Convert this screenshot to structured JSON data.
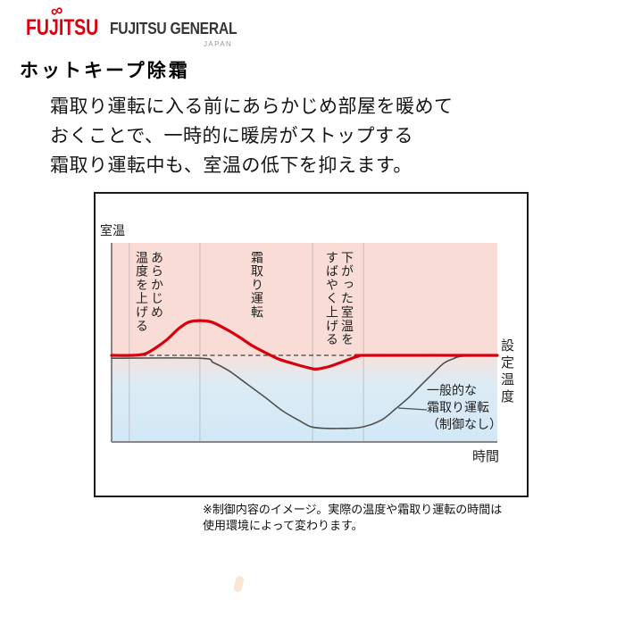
{
  "logo": {
    "fujitsu": "FUJITSU",
    "infinity": "∞",
    "general": "FUJITSU GENERAL",
    "japan": "JAPAN",
    "brand_red": "#dc000f",
    "brand_dark": "#35353a"
  },
  "heading": {
    "text": "ホットキープ除霜"
  },
  "intro": {
    "text": "霜取り運転に入る前にあらかじめ部屋を暖めて\nおくことで、一時的に暖房がストップする\n霜取り運転中も、室温の低下を抑えます。"
  },
  "diagram": {
    "y_axis_label": "室温",
    "x_axis_label": "時間",
    "set_temp_label": "設定\n温度",
    "phase1": "あらかじめ\n温度を上げる",
    "phase2": "霜取り運転",
    "phase3": "下がった室温を\nすばやく上げる",
    "legend_normal": "一般的な\n霜取り運転\n（制御なし）",
    "colors": {
      "above_set_fill": "#f9dcd6",
      "below_set_fill": "#d2e8f6",
      "hotkeep_line": "#d7000f",
      "normal_line": "#4f4f4f",
      "set_temp_dash": "#3f3f3f",
      "axis": "#85858a"
    }
  },
  "footnote": {
    "text": "※制御内容のイメージ。実際の温度や霜取り運転の時間は\n使用環境によって変わります。"
  },
  "chart_data": {
    "type": "line",
    "title": "ホットキープ除霜",
    "xlabel": "時間",
    "ylabel": "室温",
    "axis_note": "目盛りなしの概念図。x=0〜100の相対時間、y=設定温度を0とした相対室温",
    "xlim": [
      0,
      100
    ],
    "ylim": [
      -1.3,
      0.9
    ],
    "grid": "phase boundaries only (vertical lines)",
    "legend_position": "inside lower right (gray series only, with pointer line)",
    "reference_line": {
      "label": "設定温度",
      "y": 0,
      "style": "dashed"
    },
    "phases": [
      {
        "label": "あらかじめ温度を上げる",
        "x_start": 4.6,
        "x_end": 22.9
      },
      {
        "label": "霜取り運転",
        "x_start": 22.9,
        "x_end": 52.1
      },
      {
        "label": "下がった室温をすばやく上げる",
        "x_start": 52.1,
        "x_end": 65.3
      }
    ],
    "series": [
      {
        "name": "一般的な霜取り運転（制御なし）",
        "color": "#4f4f4f",
        "width": 1.6,
        "x": [
          0,
          22.9,
          26.4,
          30.6,
          35.2,
          39.8,
          44.4,
          48.6,
          51.9,
          56.0,
          60.6,
          64.1,
          67.1,
          70.4,
          73.6,
          76.9,
          80.1,
          83.3,
          86.1,
          88.4,
          91.2,
          100
        ],
        "y": [
          -0.04,
          -0.04,
          -0.1,
          -0.22,
          -0.4,
          -0.58,
          -0.77,
          -0.9,
          -0.99,
          -1.01,
          -1.01,
          -1.0,
          -0.96,
          -0.88,
          -0.74,
          -0.59,
          -0.42,
          -0.25,
          -0.11,
          -0.05,
          -0.01,
          -0.01
        ]
      },
      {
        "name": "ホットキープ除霜",
        "color": "#d7000f",
        "width": 3.2,
        "x": [
          0,
          5.0,
          8.6,
          11.6,
          14.4,
          17.4,
          20.0,
          22.9,
          25.9,
          29.4,
          32.9,
          36.3,
          39.8,
          43.3,
          46.8,
          50.2,
          53.0,
          56.0,
          58.8,
          61.8,
          64.1,
          66.4,
          100
        ],
        "y": [
          0,
          0,
          0.02,
          0.11,
          0.22,
          0.37,
          0.46,
          0.48,
          0.46,
          0.37,
          0.26,
          0.14,
          0.04,
          -0.05,
          -0.11,
          -0.16,
          -0.19,
          -0.16,
          -0.11,
          -0.05,
          -0.01,
          0,
          0
        ]
      }
    ]
  }
}
